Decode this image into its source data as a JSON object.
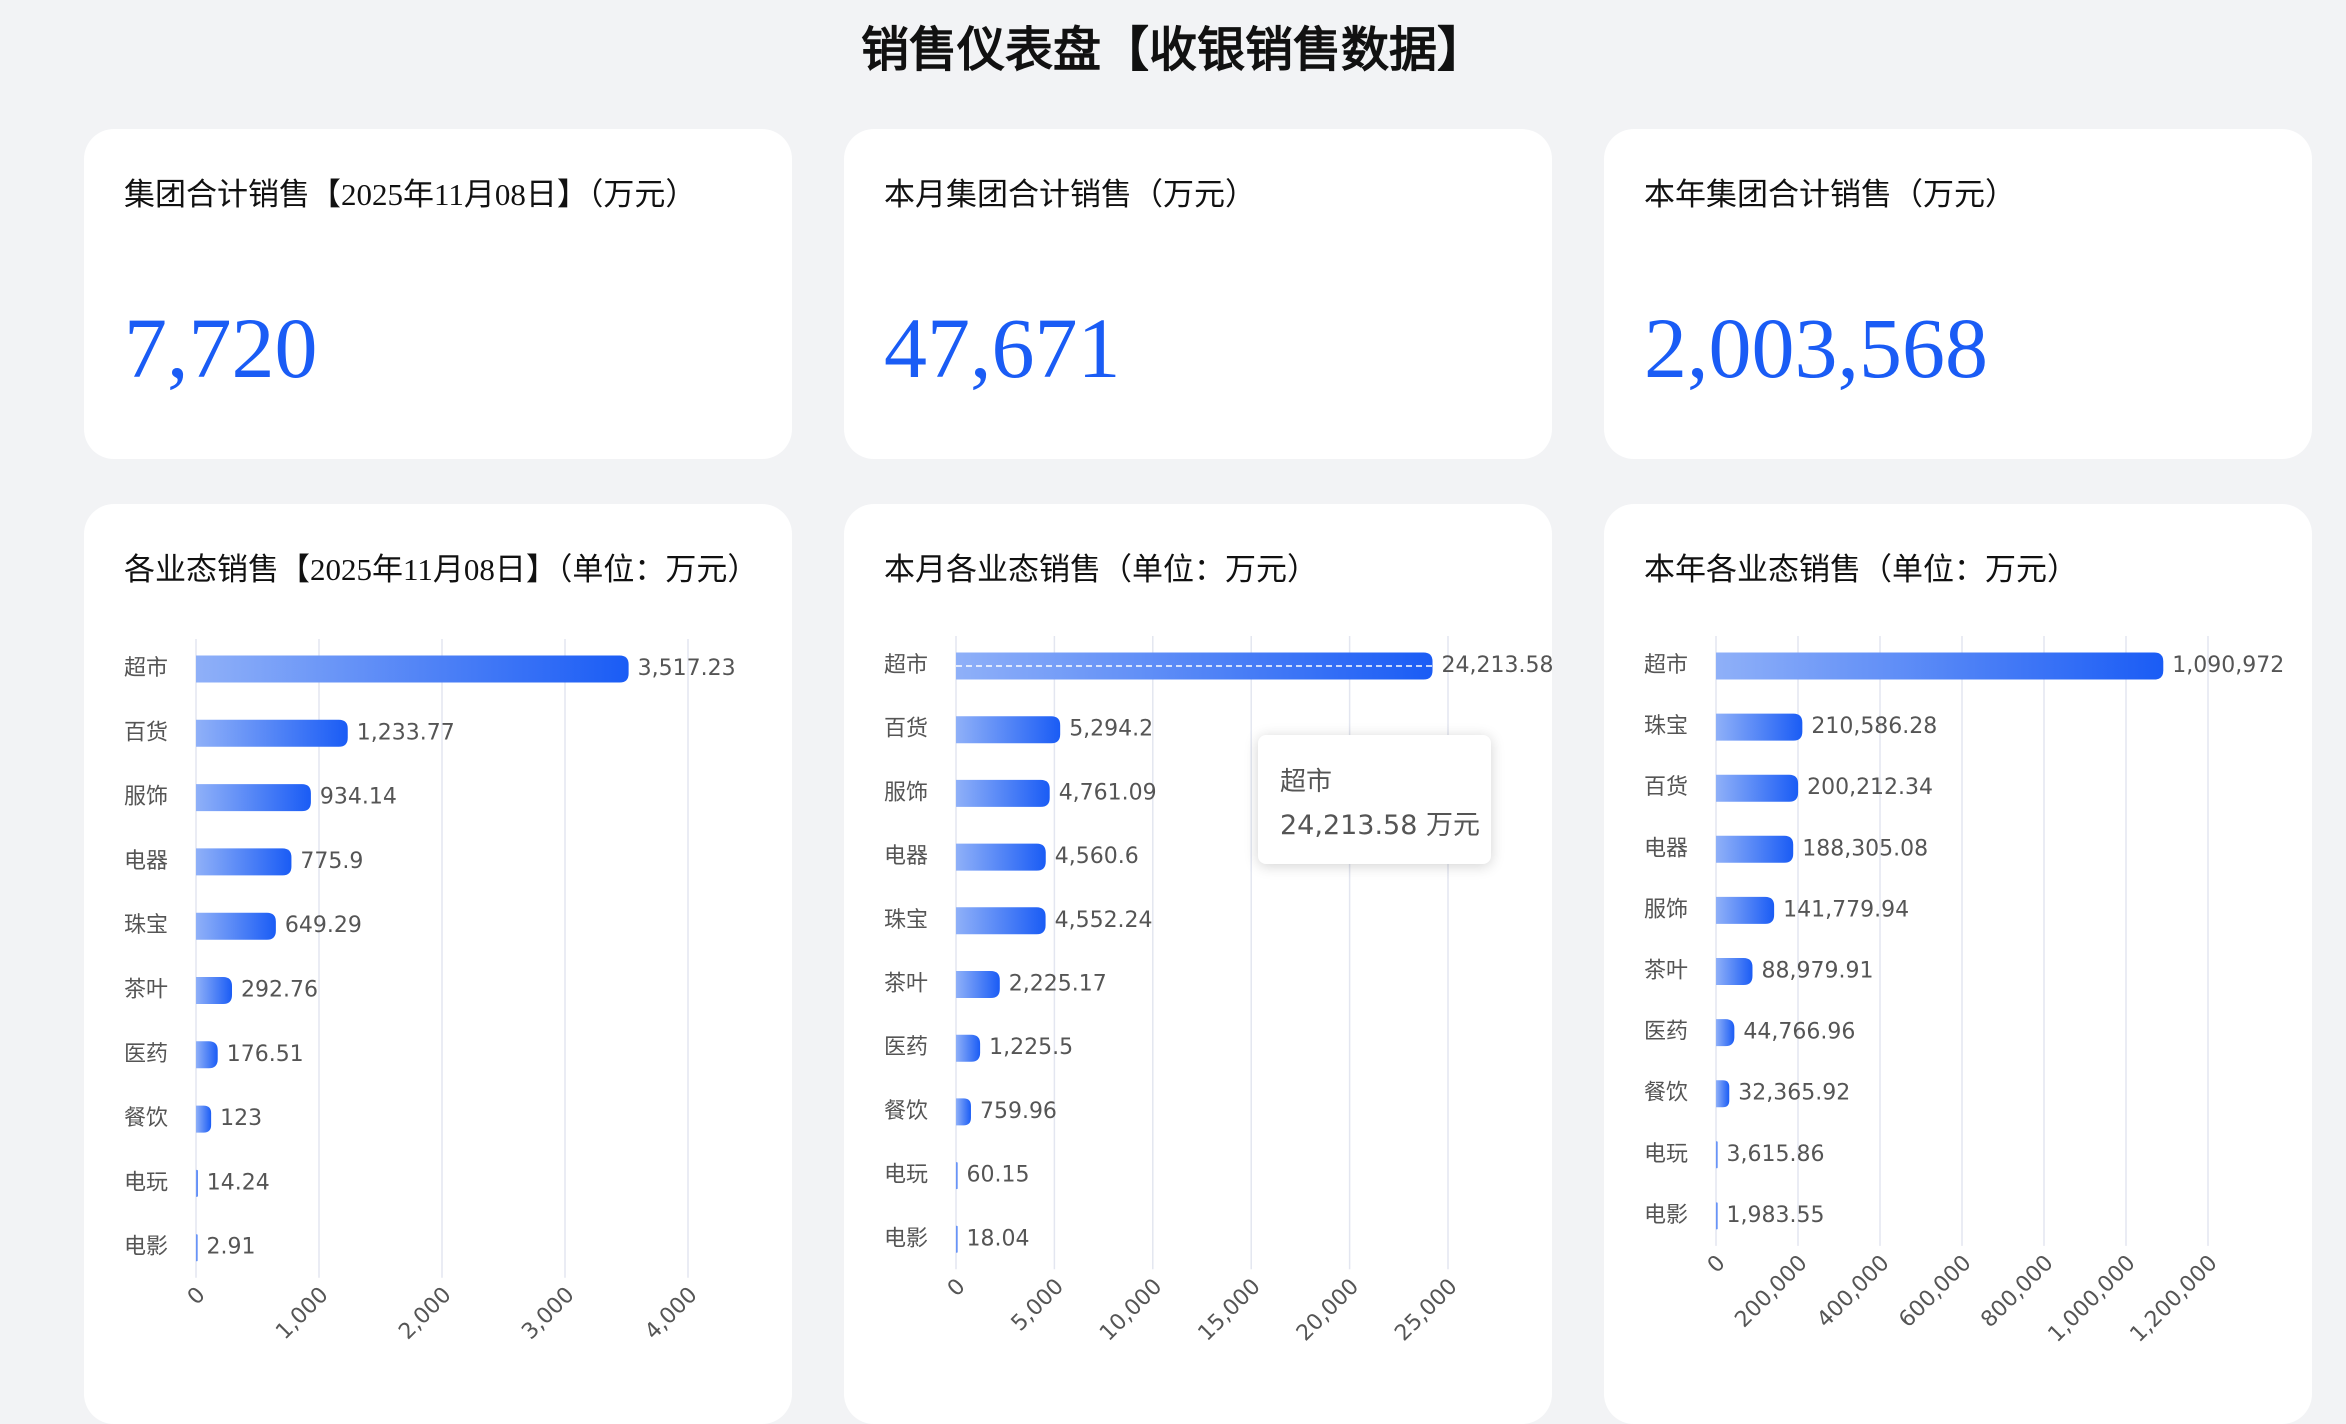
{
  "title": "销售仪表盘【收银销售数据】",
  "kpis": [
    {
      "label": "集团合计销售【2025年11月08日】（万元）",
      "value": "7,720"
    },
    {
      "label": "本月集团合计销售（万元）",
      "value": "47,671"
    },
    {
      "label": "本年集团合计销售（万元）",
      "value": "2,003,568"
    }
  ],
  "chart_data": [
    {
      "type": "hbar",
      "title": "各业态销售【2025年11月08日】（单位：万元）",
      "color": "#1a5cf5",
      "grid": true,
      "categories": [
        "超市",
        "百货",
        "服饰",
        "电器",
        "珠宝",
        "茶叶",
        "医药",
        "餐饮",
        "电玩",
        "电影"
      ],
      "values": [
        3517.23,
        1233.77,
        934.14,
        775.9,
        649.29,
        292.76,
        176.51,
        123,
        14.24,
        2.91
      ],
      "value_labels": [
        "3,517.23",
        "1,233.77",
        "934.14",
        "775.9",
        "649.29",
        "292.76",
        "176.51",
        "123",
        "14.24",
        "2.91"
      ],
      "xlim": [
        0,
        4000
      ],
      "xticks": [
        0,
        {
          "value": 1000,
          "label": "1,000"
        },
        {
          "value": 2000,
          "label": "2,000"
        },
        {
          "value": 3000,
          "label": "3,000"
        },
        {
          "value": 4000,
          "label": "4,000"
        }
      ]
    },
    {
      "type": "hbar",
      "title": "本月各业态销售（单位：万元）",
      "color": "#1a5cf5",
      "grid": true,
      "categories": [
        "超市",
        "百货",
        "服饰",
        "电器",
        "珠宝",
        "茶叶",
        "医药",
        "餐饮",
        "电玩",
        "电影"
      ],
      "values": [
        24213.58,
        5294.2,
        4761.09,
        4560.6,
        4552.24,
        2225.17,
        1225.5,
        759.96,
        60.15,
        18.04
      ],
      "value_labels": [
        "24,213.58",
        "5,294.2",
        "4,761.09",
        "4,560.6",
        "4,552.24",
        "2,225.17",
        "1,225.5",
        "759.96",
        "60.15",
        "18.04"
      ],
      "xlim": [
        0,
        25000
      ],
      "xticks": [
        0,
        {
          "value": 5000,
          "label": "5,000"
        },
        {
          "value": 10000,
          "label": "10,000"
        },
        {
          "value": 15000,
          "label": "15,000"
        },
        {
          "value": 20000,
          "label": "20,000"
        },
        {
          "value": 25000,
          "label": "25,000"
        }
      ],
      "tooltip": {
        "title": "超市",
        "text": "24,213.58 万元"
      }
    },
    {
      "type": "hbar",
      "title": "本年各业态销售（单位：万元）",
      "color": "#1a5cf5",
      "grid": true,
      "categories": [
        "超市",
        "珠宝",
        "百货",
        "电器",
        "服饰",
        "茶叶",
        "医药",
        "餐饮",
        "电玩",
        "电影"
      ],
      "values": [
        1090972,
        210586.28,
        200212.34,
        188305.08,
        141779.94,
        88979.91,
        44766.96,
        32365.92,
        3615.86,
        1983.55
      ],
      "value_labels": [
        "1,090,972",
        "210,586.28",
        "200,212.34",
        "188,305.08",
        "141,779.94",
        "88,979.91",
        "44,766.96",
        "32,365.92",
        "3,615.86",
        "1,983.55"
      ],
      "xlim": [
        0,
        1200000
      ],
      "xticks": [
        0,
        {
          "value": 200000,
          "label": "200,000"
        },
        {
          "value": 400000,
          "label": "400,000"
        },
        {
          "value": 600000,
          "label": "600,000"
        },
        {
          "value": 800000,
          "label": "800,000"
        },
        {
          "value": 1000000,
          "label": "1,000,000"
        },
        {
          "value": 1200000,
          "label": "1,200,000"
        }
      ]
    }
  ]
}
